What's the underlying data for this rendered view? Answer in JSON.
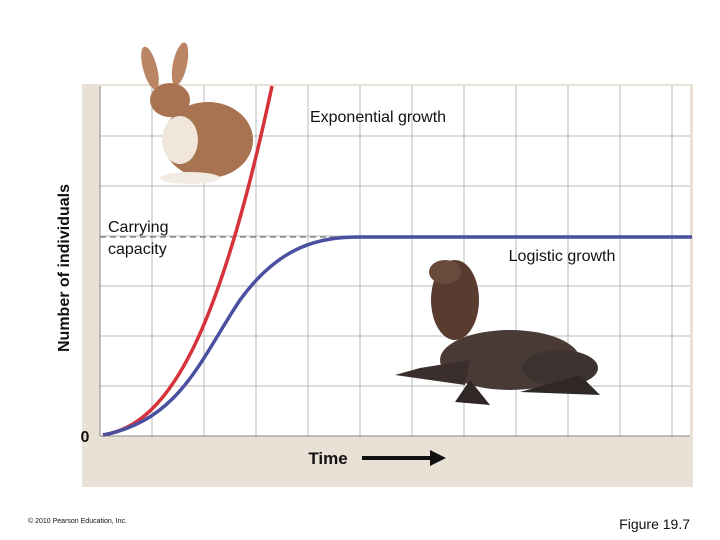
{
  "figure": {
    "y_axis_label": "Number of individuals",
    "x_axis_label": "Time",
    "origin_label": "0",
    "labels": {
      "exponential": "Exponential growth",
      "carrying_1": "Carrying",
      "carrying_2": "capacity",
      "logistic": "Logistic growth"
    },
    "copyright": "© 2010 Pearson Education, Inc.",
    "caption": "Figure 19.7"
  }
}
